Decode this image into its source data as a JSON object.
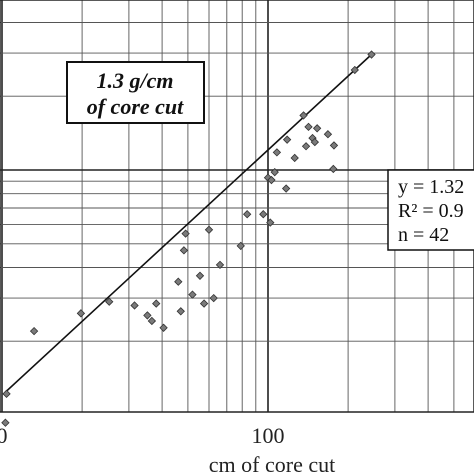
{
  "chart_data": {
    "type": "scatter",
    "x_scale": "log",
    "y_scale": "log",
    "grid": true,
    "xlabel": "cm of core cut",
    "x_tick_labels": [
      "0",
      "100"
    ],
    "title_box": [
      "1.3 g/cm",
      "of core cut"
    ],
    "equation_box": [
      "y = 1.32",
      "R² = 0.9",
      "n = 42"
    ],
    "points": [
      {
        "x": 10.4,
        "y": 1.22
      },
      {
        "x": 10.3,
        "y": 0.93
      },
      {
        "x": 13.2,
        "y": 2.2
      },
      {
        "x": 19.8,
        "y": 2.6
      },
      {
        "x": 25.3,
        "y": 2.9
      },
      {
        "x": 31.5,
        "y": 2.8
      },
      {
        "x": 35.2,
        "y": 2.55
      },
      {
        "x": 36.6,
        "y": 2.42
      },
      {
        "x": 38.0,
        "y": 2.85
      },
      {
        "x": 40.5,
        "y": 2.27
      },
      {
        "x": 46.0,
        "y": 3.5
      },
      {
        "x": 47.0,
        "y": 2.65
      },
      {
        "x": 48.3,
        "y": 4.7
      },
      {
        "x": 49.0,
        "y": 5.5
      },
      {
        "x": 52.0,
        "y": 3.1
      },
      {
        "x": 55.5,
        "y": 3.7
      },
      {
        "x": 57.5,
        "y": 2.85
      },
      {
        "x": 60.0,
        "y": 5.7
      },
      {
        "x": 62.5,
        "y": 3.0
      },
      {
        "x": 66.0,
        "y": 4.1
      },
      {
        "x": 79.0,
        "y": 4.9
      },
      {
        "x": 83.5,
        "y": 6.6
      },
      {
        "x": 96.0,
        "y": 6.6
      },
      {
        "x": 100.0,
        "y": 9.3
      },
      {
        "x": 102.0,
        "y": 6.1
      },
      {
        "x": 103.0,
        "y": 9.1
      },
      {
        "x": 106.0,
        "y": 9.8
      },
      {
        "x": 108.0,
        "y": 11.8
      },
      {
        "x": 117.0,
        "y": 8.4
      },
      {
        "x": 118.0,
        "y": 13.3
      },
      {
        "x": 126.0,
        "y": 11.2
      },
      {
        "x": 136.0,
        "y": 16.7
      },
      {
        "x": 139.0,
        "y": 12.5
      },
      {
        "x": 142.0,
        "y": 15.0
      },
      {
        "x": 147.0,
        "y": 13.5
      },
      {
        "x": 150.0,
        "y": 13.0
      },
      {
        "x": 153.0,
        "y": 14.8
      },
      {
        "x": 168.0,
        "y": 14.0
      },
      {
        "x": 176.0,
        "y": 10.1
      },
      {
        "x": 177.0,
        "y": 12.6
      },
      {
        "x": 212.0,
        "y": 25.6
      },
      {
        "x": 245.0,
        "y": 29.6
      }
    ],
    "trendline": {
      "x": [
        10.3,
        245.0
      ],
      "y": [
        1.24,
        29.6
      ]
    }
  }
}
